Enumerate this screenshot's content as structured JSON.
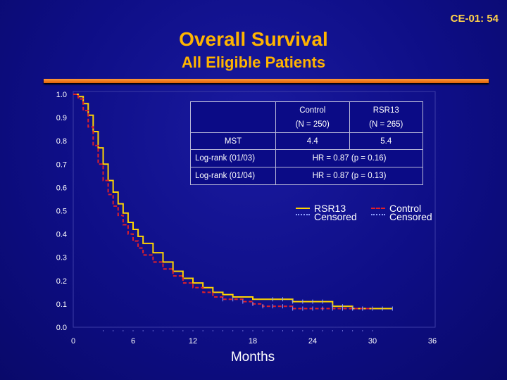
{
  "slide_id": "CE-01: 54",
  "title": "Overall Survival",
  "subtitle": "All Eligible Patients",
  "colors": {
    "background": "#0e0e86",
    "title": "#ffb400",
    "rsr13": "#ffd400",
    "control": "#e0202a",
    "censored": "#8fa0ff",
    "rule": "#f07a1a"
  },
  "table": {
    "col_headers": [
      [
        "Control",
        "(N = 250)"
      ],
      [
        "RSR13",
        "(N = 265)"
      ]
    ],
    "mst_label": "MST",
    "mst_values": [
      "4.4",
      "5.4"
    ],
    "logrank1_label": "Log-rank (01/03)",
    "logrank1_value": "HR = 0.87 (p = 0.16)",
    "logrank2_label": "Log-rank (01/04)",
    "logrank2_value": "HR = 0.87 (p = 0.13)"
  },
  "legend": {
    "rsr13": "RSR13",
    "rsr13_censored": "Censored",
    "control": "Control",
    "control_censored": "Censored"
  },
  "chart_data": {
    "type": "line",
    "title": "Overall Survival",
    "xlabel": "Months",
    "ylabel": "",
    "xlim": [
      0,
      36
    ],
    "ylim": [
      0,
      1
    ],
    "x_ticks": [
      0,
      6,
      12,
      18,
      24,
      30,
      36
    ],
    "y_ticks": [
      "0.0",
      "0.1",
      "0.2",
      "0.3",
      "0.4",
      "0.5",
      "0.6",
      "0.7",
      "0.8",
      "0.9",
      "1.0"
    ],
    "series": [
      {
        "name": "RSR13",
        "style": "solid",
        "x": [
          0,
          0.5,
          1,
          1.5,
          2,
          2.5,
          3,
          3.5,
          4,
          4.5,
          5,
          5.5,
          6,
          6.5,
          7,
          8,
          9,
          10,
          11,
          12,
          13,
          14,
          15,
          16,
          17,
          18,
          20,
          22,
          24,
          26,
          28,
          30,
          32
        ],
        "y": [
          1.0,
          0.99,
          0.96,
          0.91,
          0.84,
          0.77,
          0.7,
          0.63,
          0.58,
          0.53,
          0.49,
          0.45,
          0.42,
          0.39,
          0.36,
          0.32,
          0.28,
          0.24,
          0.21,
          0.19,
          0.17,
          0.15,
          0.14,
          0.13,
          0.13,
          0.12,
          0.12,
          0.11,
          0.11,
          0.09,
          0.08,
          0.08,
          0.08
        ]
      },
      {
        "name": "Control",
        "style": "dashed",
        "x": [
          0,
          0.5,
          1,
          1.5,
          2,
          2.5,
          3,
          3.5,
          4,
          4.5,
          5,
          5.5,
          6,
          6.5,
          7,
          8,
          9,
          10,
          11,
          12,
          13,
          14,
          15,
          16,
          17,
          18,
          19,
          20,
          22,
          24,
          26,
          28,
          30
        ],
        "y": [
          1.0,
          0.98,
          0.93,
          0.86,
          0.78,
          0.7,
          0.63,
          0.57,
          0.52,
          0.48,
          0.44,
          0.4,
          0.37,
          0.34,
          0.31,
          0.28,
          0.25,
          0.22,
          0.19,
          0.17,
          0.15,
          0.13,
          0.12,
          0.12,
          0.11,
          0.1,
          0.09,
          0.09,
          0.08,
          0.08,
          0.08,
          0.08,
          0.08
        ]
      }
    ],
    "censored_rsr13_months": [
      20,
      21,
      22,
      23,
      24,
      25,
      26,
      27,
      28,
      29,
      30,
      31,
      32
    ],
    "censored_control_months": [
      15,
      16,
      17,
      18,
      19,
      20,
      21,
      22,
      23,
      24,
      25,
      26,
      27,
      28,
      29,
      30
    ],
    "censored_axis_months": [
      3,
      4,
      5,
      6,
      7,
      8,
      9,
      10,
      11,
      12,
      13,
      14,
      15,
      16,
      17,
      18,
      19,
      20,
      21,
      22,
      23,
      24,
      25,
      26,
      27,
      28,
      29,
      30
    ]
  }
}
